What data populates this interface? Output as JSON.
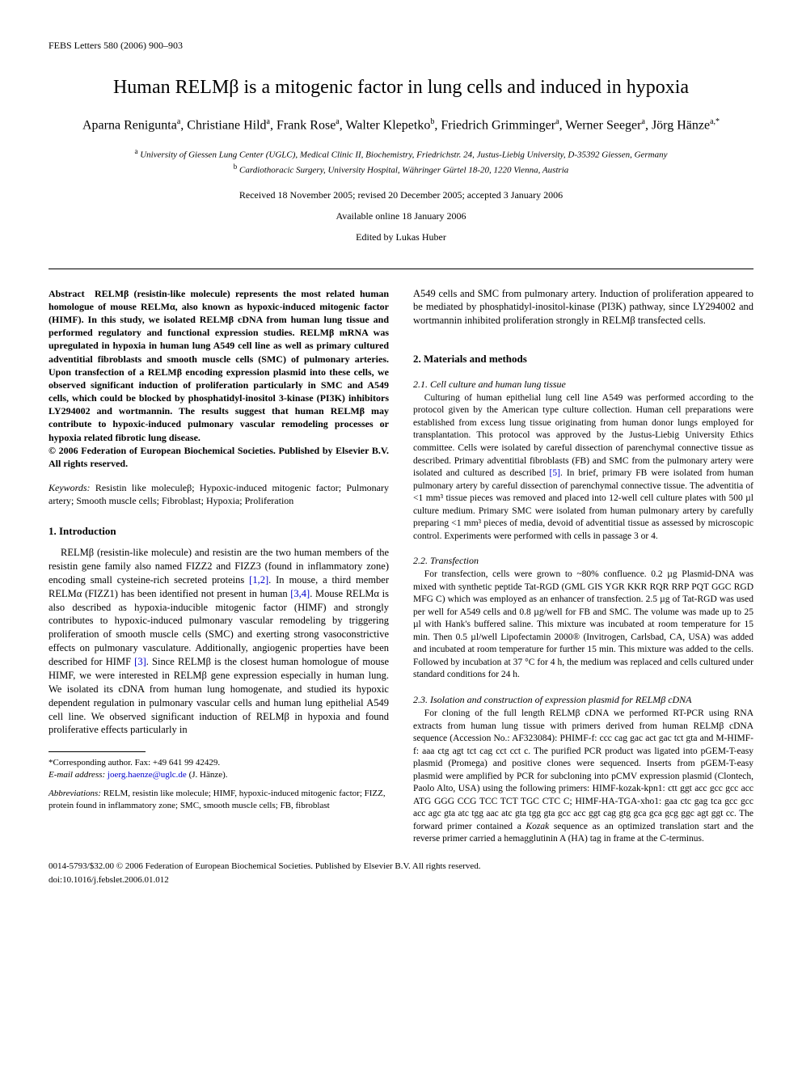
{
  "journal_header": "FEBS Letters 580 (2006) 900–903",
  "title": "Human RELMβ is a mitogenic factor in lung cells and induced in hypoxia",
  "authors_html": "Aparna Renigunta<sup>a</sup>, Christiane Hild<sup>a</sup>, Frank Rose<sup>a</sup>, Walter Klepetko<sup>b</sup>, Friedrich Grimminger<sup>a</sup>, Werner Seeger<sup>a</sup>, Jörg Hänze<sup>a,*</sup>",
  "affiliations": [
    {
      "sup": "a",
      "text": "University of Giessen Lung Center (UGLC), Medical Clinic II, Biochemistry, Friedrichstr. 24, Justus-Liebig University, D-35392 Giessen, Germany"
    },
    {
      "sup": "b",
      "text": "Cardiothoracic Surgery, University Hospital, Währinger Gürtel 18-20, 1220 Vienna, Austria"
    }
  ],
  "dates": "Received 18 November 2005; revised 20 December 2005; accepted 3 January 2006",
  "available": "Available online 18 January 2006",
  "editor": "Edited by Lukas Huber",
  "abstract_label": "Abstract",
  "abstract_body": "RELMβ (resistin-like molecule) represents the most related human homologue of mouse RELMα, also known as hypoxic-induced mitogenic factor (HIMF). In this study, we isolated RELMβ cDNA from human lung tissue and performed regulatory and functional expression studies. RELMβ mRNA was upregulated in hypoxia in human lung A549 cell line as well as primary cultured adventitial fibroblasts and smooth muscle cells (SMC) of pulmonary arteries. Upon transfection of a RELMβ encoding expression plasmid into these cells, we observed significant induction of proliferation particularly in SMC and A549 cells, which could be blocked by phosphatidyl-inositol 3-kinase (PI3K) inhibitors LY294002 and wortmannin. The results suggest that human RELMβ may contribute to hypoxic-induced pulmonary vascular remodeling processes or hypoxia related fibrotic lung disease.",
  "copyright": "© 2006 Federation of European Biochemical Societies. Published by Elsevier B.V. All rights reserved.",
  "keywords_label": "Keywords:",
  "keywords_body": "Resistin like moleculeβ; Hypoxic-induced mitogenic factor; Pulmonary artery; Smooth muscle cells; Fibroblast; Hypoxia; Proliferation",
  "section1_heading": "1. Introduction",
  "intro_p1": "RELMβ (resistin-like molecule) and resistin are the two human members of the resistin gene family also named FIZZ2 and FIZZ3 (found in inflammatory zone) encoding small cysteine-rich secreted proteins [1,2]. In mouse, a third member RELMα (FIZZ1) has been identified not present in human [3,4]. Mouse RELMα is also described as hypoxia-inducible mitogenic factor (HIMF) and strongly contributes to hypoxic-induced pulmonary vascular remodeling by triggering proliferation of smooth muscle cells (SMC) and exerting strong vasoconstrictive effects on pulmonary vasculature. Additionally, angiogenic properties have been described for HIMF [3]. Since RELMβ is the closest human homologue of mouse HIMF, we were interested in RELMβ gene expression especially in human lung. We isolated its cDNA from human lung homogenate, and studied its hypoxic dependent regulation in pulmonary vascular cells and human lung epithelial A549 cell line. We observed significant induction of RELMβ in hypoxia and found proliferative effects particularly in",
  "col2_top": "A549 cells and SMC from pulmonary artery. Induction of proliferation appeared to be mediated by phosphatidyl-inositol-kinase (PI3K) pathway, since LY294002 and wortmannin inhibited proliferation strongly in RELMβ transfected cells.",
  "section2_heading": "2. Materials and methods",
  "sub21_heading": "2.1. Cell culture and human lung tissue",
  "sub21_body": "Culturing of human epithelial lung cell line A549 was performed according to the protocol given by the American type culture collection. Human cell preparations were established from excess lung tissue originating from human donor lungs employed for transplantation. This protocol was approved by the Justus-Liebig University Ethics committee. Cells were isolated by careful dissection of parenchymal connective tissue as described. Primary adventitial fibroblasts (FB) and SMC from the pulmonary artery were isolated and cultured as described [5]. In brief, primary FB were isolated from human pulmonary artery by careful dissection of parenchymal connective tissue. The adventitia of <1 mm³ tissue pieces was removed and placed into 12-well cell culture plates with 500 µl culture medium. Primary SMC were isolated from human pulmonary artery by carefully preparing <1 mm³ pieces of media, devoid of adventitial tissue as assessed by microscopic control. Experiments were performed with cells in passage 3 or 4.",
  "sub22_heading": "2.2. Transfection",
  "sub22_body": "For transfection, cells were grown to ~80% confluence. 0.2 µg Plasmid-DNA was mixed with synthetic peptide Tat-RGD (GML GIS YGR KKR RQR RRP PQT GGC RGD MFG C) which was employed as an enhancer of transfection. 2.5 µg of Tat-RGD was used per well for A549 cells and 0.8 µg/well for FB and SMC. The volume was made up to 25 µl with Hank's buffered saline. This mixture was incubated at room temperature for 15 min. Then 0.5 µl/well Lipofectamin 2000® (Invitrogen, Carlsbad, CA, USA) was added and incubated at room temperature for further 15 min. This mixture was added to the cells. Followed by incubation at 37 °C for 4 h, the medium was replaced and cells cultured under standard conditions for 24 h.",
  "sub23_heading": "2.3. Isolation and construction of expression plasmid for RELMβ cDNA",
  "sub23_body": "For cloning of the full length RELMβ cDNA we performed RT-PCR using RNA extracts from human lung tissue with primers derived from human RELMβ cDNA sequence (Accession No.: AF323084): PHIMF-f: ccc cag gac act gac tct gta and M-HIMF-f: aaa ctg agt tct cag cct cct c. The purified PCR product was ligated into pGEM-T-easy plasmid (Promega) and positive clones were sequenced. Inserts from pGEM-T-easy plasmid were amplified by PCR for subcloning into pCMV expression plasmid (Clontech, Paolo Alto, USA) using the following primers: HIMF-kozak-kpn1: ctt ggt acc gcc gcc acc ATG GGG CCG TCC TCT TGC CTC C; HIMF-HA-TGA-xho1: gaa ctc gag tca gcc gcc acc agc gta atc tgg aac atc gta tgg gta gcc acc ggt cag gtg gca gca gcg ggc agt ggt cc. The forward primer contained a Kozak sequence as an optimized translation start and the reverse primer carried a hemagglutinin A (HA) tag in frame at the C-terminus.",
  "corr_line": "*Corresponding author. Fax: +49 641 99 42429.",
  "email_label": "E-mail address:",
  "email": "joerg.haenze@uglc.de",
  "email_paren": "(J. Hänze).",
  "abbrev_label": "Abbreviations:",
  "abbrev_body": "RELM, resistin like molecule; HIMF, hypoxic-induced mitogenic factor; FIZZ, protein found in inflammatory zone; SMC, smooth muscle cells; FB, fibroblast",
  "footer1": "0014-5793/$32.00 © 2006 Federation of European Biochemical Societies. Published by Elsevier B.V. All rights reserved.",
  "footer2": "doi:10.1016/j.febslet.2006.01.012"
}
